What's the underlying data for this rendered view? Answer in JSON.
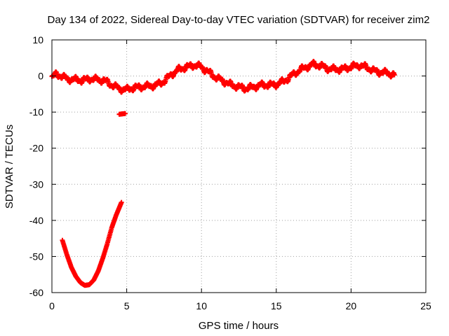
{
  "chart_data": {
    "type": "scatter",
    "title": "Day 134 of 2022, Sidereal Day-to-day VTEC variation (SDTVAR) for receiver zim2",
    "xlabel": "GPS time / hours",
    "ylabel": "SDTVAR / TECUs",
    "xlim": [
      0,
      25
    ],
    "ylim": [
      -60,
      10
    ],
    "xticks": [
      0,
      5,
      10,
      15,
      20,
      25
    ],
    "yticks": [
      10,
      0,
      -10,
      -20,
      -30,
      -40,
      -50,
      -60
    ],
    "grid": true,
    "marker": "plus",
    "color": "#ff0000",
    "series": [
      {
        "name": "main-trace",
        "x": [
          0.0,
          0.3,
          0.6,
          1.0,
          1.5,
          2.0,
          2.5,
          3.0,
          3.5,
          4.0,
          4.5,
          5.0,
          5.5,
          6.0,
          6.5,
          7.0,
          7.5,
          8.0,
          8.5,
          9.0,
          9.5,
          10.0,
          10.5,
          11.0,
          11.5,
          12.0,
          12.5,
          13.0,
          13.5,
          14.0,
          14.5,
          15.0,
          15.5,
          16.0,
          16.5,
          17.0,
          17.5,
          18.0,
          18.5,
          19.0,
          19.5,
          20.0,
          20.5,
          21.0,
          21.5,
          22.0,
          22.5,
          22.9
        ],
        "y": [
          -0.5,
          0.5,
          0.0,
          -0.8,
          -1.0,
          -1.2,
          -0.8,
          -1.0,
          -1.2,
          -2.5,
          -3.5,
          -3.8,
          -3.2,
          -3.0,
          -2.8,
          -2.5,
          -1.5,
          0.5,
          1.8,
          2.5,
          3.0,
          2.5,
          1.0,
          -0.5,
          -1.5,
          -2.5,
          -3.0,
          -3.5,
          -3.0,
          -2.5,
          -2.5,
          -2.3,
          -1.5,
          0.0,
          1.5,
          2.5,
          3.2,
          2.8,
          2.0,
          1.8,
          2.0,
          2.5,
          3.0,
          2.5,
          1.5,
          1.0,
          0.8,
          0.3
        ]
      },
      {
        "name": "offset-trace",
        "x": [
          4.5,
          4.9
        ],
        "y": [
          -10.6,
          -10.4
        ]
      },
      {
        "name": "deep-arc",
        "x": [
          0.7,
          1.0,
          1.3,
          1.6,
          1.9,
          2.2,
          2.5,
          2.8,
          3.1,
          3.4,
          3.7,
          4.0,
          4.3,
          4.65
        ],
        "y": [
          -45.5,
          -49.5,
          -53.0,
          -55.5,
          -57.2,
          -58.0,
          -57.8,
          -56.5,
          -54.0,
          -50.5,
          -46.5,
          -42.0,
          -38.5,
          -35.0
        ]
      }
    ]
  }
}
